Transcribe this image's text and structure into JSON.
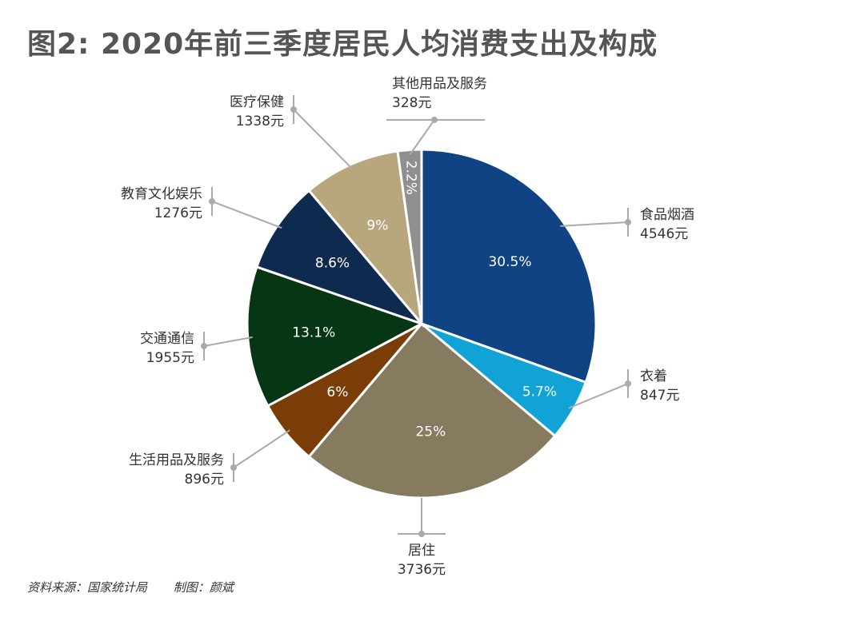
{
  "title": "图2: 2020年前三季度居民人均消费支出及构成",
  "source": "资料来源：国家统计局",
  "credit": "制图：颜斌",
  "chart_data": {
    "type": "pie",
    "slices": [
      {
        "name": "食品烟酒",
        "value": 4546,
        "value_label": "4546元",
        "percent_label": "30.5%",
        "color": "#0f4383"
      },
      {
        "name": "衣着",
        "value": 847,
        "value_label": "847元",
        "percent_label": "5.7%",
        "color": "#11a3d6"
      },
      {
        "name": "居住",
        "value": 3736,
        "value_label": "3736元",
        "percent_label": "25%",
        "color": "#867a5f"
      },
      {
        "name": "生活用品及服务",
        "value": 896,
        "value_label": "896元",
        "percent_label": "6%",
        "color": "#7a3d08"
      },
      {
        "name": "交通通信",
        "value": 1955,
        "value_label": "1955元",
        "percent_label": "13.1%",
        "color": "#073614"
      },
      {
        "name": "教育文化娱乐",
        "value": 1276,
        "value_label": "1276元",
        "percent_label": "8.6%",
        "color": "#0e2a4e"
      },
      {
        "name": "医疗保健",
        "value": 1338,
        "value_label": "1338元",
        "percent_label": "9%",
        "color": "#b8a77c"
      },
      {
        "name": "其他用品及服务",
        "value": 328,
        "value_label": "328元",
        "percent_label": "2.2%",
        "color": "#8f8f8f"
      }
    ]
  }
}
